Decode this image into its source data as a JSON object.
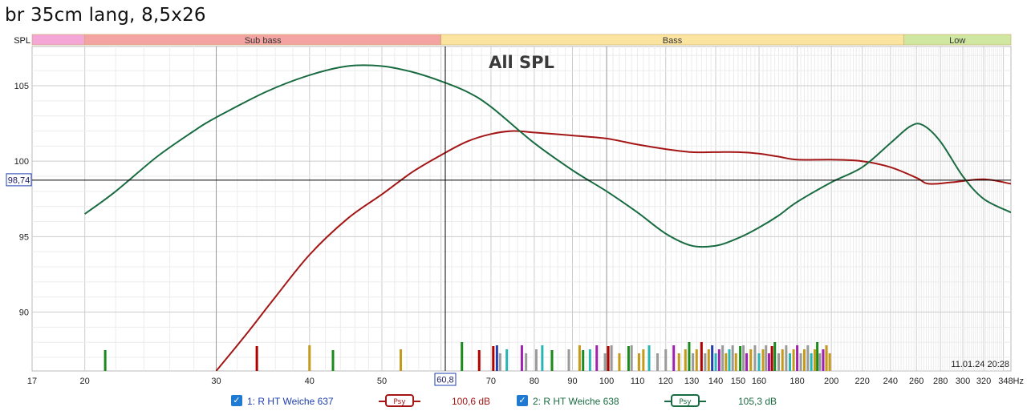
{
  "window": {
    "title": "br 35cm lang, 8,5x26"
  },
  "chart_data": {
    "type": "line",
    "title": "All SPL",
    "xscale": "log",
    "xlim": [
      17,
      348
    ],
    "ylim": [
      86.1,
      107.6
    ],
    "x_ticks": [
      {
        "v": 17,
        "label": "17"
      },
      {
        "v": 20,
        "label": "20"
      },
      {
        "v": 30,
        "label": "30"
      },
      {
        "v": 40,
        "label": "40"
      },
      {
        "v": 50,
        "label": "50"
      },
      {
        "v": 70,
        "label": "70"
      },
      {
        "v": 80,
        "label": "80"
      },
      {
        "v": 90,
        "label": "90"
      },
      {
        "v": 100,
        "label": "100"
      },
      {
        "v": 110,
        "label": "110"
      },
      {
        "v": 120,
        "label": "120"
      },
      {
        "v": 130,
        "label": "130"
      },
      {
        "v": 140,
        "label": "140"
      },
      {
        "v": 150,
        "label": "150"
      },
      {
        "v": 160,
        "label": "160"
      },
      {
        "v": 180,
        "label": "180"
      },
      {
        "v": 200,
        "label": "200"
      },
      {
        "v": 220,
        "label": "220"
      },
      {
        "v": 240,
        "label": "240"
      },
      {
        "v": 260,
        "label": "260"
      },
      {
        "v": 280,
        "label": "280"
      },
      {
        "v": 300,
        "label": "300"
      },
      {
        "v": 320,
        "label": "320"
      },
      {
        "v": 348,
        "label": "348Hz"
      }
    ],
    "y_ticks": [
      {
        "v": 90,
        "label": "90"
      },
      {
        "v": 95,
        "label": "95"
      },
      {
        "v": 100,
        "label": "100"
      },
      {
        "v": 105,
        "label": "105"
      }
    ],
    "bands_label": "SPL",
    "bands": [
      {
        "name": "",
        "from": 17,
        "to": 20,
        "color": "#f4a6d7"
      },
      {
        "name": "Sub bass",
        "from": 20,
        "to": 60,
        "color": "#f4a3a3"
      },
      {
        "name": "Bass",
        "from": 60,
        "to": 250,
        "color": "#fbe3a0"
      },
      {
        "name": "Low",
        "from": 250,
        "to": 348,
        "color": "#cfe7a1"
      }
    ],
    "cursor": {
      "x": 60.8,
      "y": 98.74,
      "x_label": "60,8",
      "y_label": "98,74"
    },
    "timestamp": "11.01.24 20:28",
    "series": [
      {
        "name": "1: R HT Weiche 637",
        "color": "#a41616",
        "value_label": "100,6 dB",
        "points": [
          [
            30,
            86.1
          ],
          [
            33,
            88.6
          ],
          [
            36,
            91.0
          ],
          [
            40,
            93.8
          ],
          [
            45,
            96.2
          ],
          [
            50,
            97.8
          ],
          [
            55,
            99.3
          ],
          [
            60,
            100.4
          ],
          [
            65,
            101.3
          ],
          [
            70,
            101.8
          ],
          [
            75,
            102.0
          ],
          [
            80,
            101.9
          ],
          [
            90,
            101.7
          ],
          [
            100,
            101.5
          ],
          [
            110,
            101.1
          ],
          [
            120,
            100.8
          ],
          [
            130,
            100.6
          ],
          [
            140,
            100.6
          ],
          [
            150,
            100.6
          ],
          [
            160,
            100.5
          ],
          [
            170,
            100.3
          ],
          [
            180,
            100.1
          ],
          [
            200,
            100.1
          ],
          [
            220,
            100.0
          ],
          [
            240,
            99.6
          ],
          [
            260,
            98.9
          ],
          [
            270,
            98.5
          ],
          [
            290,
            98.6
          ],
          [
            320,
            98.8
          ],
          [
            348,
            98.5
          ]
        ]
      },
      {
        "name": "2: R HT Weiche 638",
        "color": "#196b41",
        "value_label": "105,3 dB",
        "points": [
          [
            20,
            96.5
          ],
          [
            22,
            98.0
          ],
          [
            25,
            100.3
          ],
          [
            28,
            102.0
          ],
          [
            30,
            102.9
          ],
          [
            35,
            104.6
          ],
          [
            40,
            105.7
          ],
          [
            45,
            106.3
          ],
          [
            50,
            106.3
          ],
          [
            55,
            105.9
          ],
          [
            60,
            105.3
          ],
          [
            65,
            104.6
          ],
          [
            70,
            103.6
          ],
          [
            80,
            101.2
          ],
          [
            90,
            99.4
          ],
          [
            100,
            98.0
          ],
          [
            110,
            96.6
          ],
          [
            120,
            95.2
          ],
          [
            130,
            94.4
          ],
          [
            140,
            94.4
          ],
          [
            150,
            94.9
          ],
          [
            160,
            95.6
          ],
          [
            170,
            96.4
          ],
          [
            180,
            97.3
          ],
          [
            200,
            98.6
          ],
          [
            220,
            99.6
          ],
          [
            240,
            101.2
          ],
          [
            255,
            102.3
          ],
          [
            265,
            102.4
          ],
          [
            280,
            101.3
          ],
          [
            300,
            99.0
          ],
          [
            320,
            97.5
          ],
          [
            348,
            96.6
          ]
        ]
      }
    ]
  },
  "markers": [
    {
      "x": 21.3,
      "c": "#1a8a1a"
    },
    {
      "x": 34.0,
      "c": "#b00000"
    },
    {
      "x": 40.0,
      "c": "#c49a1a"
    },
    {
      "x": 43.0,
      "c": "#1a8a1a"
    },
    {
      "x": 53.0,
      "c": "#c49a1a"
    },
    {
      "x": 64.0,
      "c": "#1a8a1a"
    },
    {
      "x": 67.5,
      "c": "#b00000"
    },
    {
      "x": 70.5,
      "c": "#b00000"
    },
    {
      "x": 71.3,
      "c": "#1f3fb0"
    },
    {
      "x": 72.0,
      "c": "#9a9a9a"
    },
    {
      "x": 73.5,
      "c": "#2ab5b5"
    },
    {
      "x": 77.0,
      "c": "#a020b0"
    },
    {
      "x": 78.0,
      "c": "#9a9a9a"
    },
    {
      "x": 80.5,
      "c": "#9a9a9a"
    },
    {
      "x": 82.0,
      "c": "#2ab5b5"
    },
    {
      "x": 84.5,
      "c": "#1a8a1a"
    },
    {
      "x": 89.0,
      "c": "#9a9a9a"
    },
    {
      "x": 92.0,
      "c": "#c49a1a"
    },
    {
      "x": 93.0,
      "c": "#1a8a1a"
    },
    {
      "x": 95.0,
      "c": "#2ab5b5"
    },
    {
      "x": 97.0,
      "c": "#a020b0"
    },
    {
      "x": 99.5,
      "c": "#9a9a9a"
    },
    {
      "x": 100.5,
      "c": "#b00000"
    },
    {
      "x": 101.5,
      "c": "#9a9a9a"
    },
    {
      "x": 104.0,
      "c": "#c49a1a"
    },
    {
      "x": 107.0,
      "c": "#1a8a1a"
    },
    {
      "x": 108.0,
      "c": "#9a9a9a"
    },
    {
      "x": 110.5,
      "c": "#c49a1a"
    },
    {
      "x": 112.0,
      "c": "#c49a1a"
    },
    {
      "x": 114.0,
      "c": "#2ab5b5"
    },
    {
      "x": 117.0,
      "c": "#9a9a9a"
    },
    {
      "x": 120.0,
      "c": "#9a9a9a"
    },
    {
      "x": 123.0,
      "c": "#a020b0"
    },
    {
      "x": 125.0,
      "c": "#c49a1a"
    },
    {
      "x": 127.5,
      "c": "#c49a1a"
    },
    {
      "x": 129.0,
      "c": "#1a8a1a"
    },
    {
      "x": 130.5,
      "c": "#9a9a9a"
    },
    {
      "x": 132.0,
      "c": "#c49a1a"
    },
    {
      "x": 134.0,
      "c": "#b00000"
    },
    {
      "x": 135.5,
      "c": "#9a9a9a"
    },
    {
      "x": 137.0,
      "c": "#c49a1a"
    },
    {
      "x": 138.5,
      "c": "#1f3fb0"
    },
    {
      "x": 140.0,
      "c": "#2ab5b5"
    },
    {
      "x": 141.5,
      "c": "#a020b0"
    },
    {
      "x": 143.0,
      "c": "#9a9a9a"
    },
    {
      "x": 144.5,
      "c": "#c49a1a"
    },
    {
      "x": 146.0,
      "c": "#2ab5b5"
    },
    {
      "x": 147.5,
      "c": "#9a9a9a"
    },
    {
      "x": 149.0,
      "c": "#c49a1a"
    },
    {
      "x": 151.0,
      "c": "#1a8a1a"
    },
    {
      "x": 152.5,
      "c": "#9a9a9a"
    },
    {
      "x": 154.0,
      "c": "#a020b0"
    },
    {
      "x": 156.0,
      "c": "#c49a1a"
    },
    {
      "x": 158.0,
      "c": "#9a9a9a"
    },
    {
      "x": 160.0,
      "c": "#2ab5b5"
    },
    {
      "x": 162.0,
      "c": "#c49a1a"
    },
    {
      "x": 163.5,
      "c": "#9a9a9a"
    },
    {
      "x": 165.0,
      "c": "#a020b0"
    },
    {
      "x": 166.5,
      "c": "#b00000"
    },
    {
      "x": 168.0,
      "c": "#1a8a1a"
    },
    {
      "x": 170.0,
      "c": "#9a9a9a"
    },
    {
      "x": 172.0,
      "c": "#c49a1a"
    },
    {
      "x": 174.0,
      "c": "#9a9a9a"
    },
    {
      "x": 176.0,
      "c": "#2ab5b5"
    },
    {
      "x": 178.0,
      "c": "#c49a1a"
    },
    {
      "x": 180.0,
      "c": "#a020b0"
    },
    {
      "x": 182.0,
      "c": "#9a9a9a"
    },
    {
      "x": 184.0,
      "c": "#c49a1a"
    },
    {
      "x": 186.0,
      "c": "#9a9a9a"
    },
    {
      "x": 188.0,
      "c": "#2ab5b5"
    },
    {
      "x": 190.0,
      "c": "#c49a1a"
    },
    {
      "x": 191.5,
      "c": "#1a8a1a"
    },
    {
      "x": 193.0,
      "c": "#9a9a9a"
    },
    {
      "x": 195.0,
      "c": "#a020b0"
    },
    {
      "x": 197.0,
      "c": "#c49a1a"
    },
    {
      "x": 199.0,
      "c": "#c49a1a"
    }
  ],
  "legend": [
    {
      "checked": "✓",
      "name": "1: R HT Weiche 637",
      "psy": "Psy",
      "value": "100,6 dB",
      "color": "#a41616",
      "label_color": "#1f3fb0"
    },
    {
      "checked": "✓",
      "name": "2: R HT Weiche 638",
      "psy": "Psy",
      "value": "105,3 dB",
      "color": "#196b41",
      "label_color": "#196b41"
    }
  ]
}
